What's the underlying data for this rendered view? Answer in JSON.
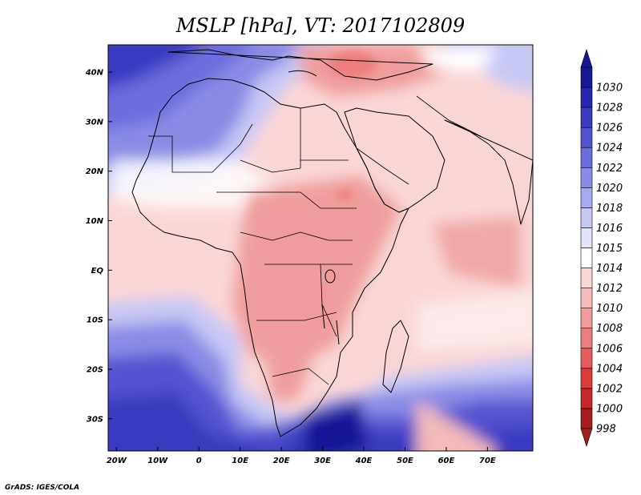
{
  "title": "MSLP [hPa], VT: 2017102809",
  "credit": "GrADS: IGES/COLA",
  "x_axis": {
    "range": [
      -22,
      81
    ],
    "ticks": [
      {
        "value": -20,
        "label": "20W"
      },
      {
        "value": -10,
        "label": "10W"
      },
      {
        "value": 0,
        "label": "0"
      },
      {
        "value": 10,
        "label": "10E"
      },
      {
        "value": 20,
        "label": "20E"
      },
      {
        "value": 30,
        "label": "30E"
      },
      {
        "value": 40,
        "label": "40E"
      },
      {
        "value": 50,
        "label": "50E"
      },
      {
        "value": 60,
        "label": "60E"
      },
      {
        "value": 70,
        "label": "70E"
      }
    ]
  },
  "y_axis": {
    "range": [
      -36.5,
      45.5
    ],
    "ticks": [
      {
        "value": 40,
        "label": "40N"
      },
      {
        "value": 30,
        "label": "30N"
      },
      {
        "value": 20,
        "label": "20N"
      },
      {
        "value": 10,
        "label": "10N"
      },
      {
        "value": 0,
        "label": "EQ"
      },
      {
        "value": -10,
        "label": "10S"
      },
      {
        "value": -20,
        "label": "20S"
      },
      {
        "value": -30,
        "label": "30S"
      }
    ]
  },
  "colorbar": [
    {
      "value": "998",
      "color": "#a51c1c"
    },
    {
      "value": "1000",
      "color": "#c42828"
    },
    {
      "value": "1002",
      "color": "#da3c3c"
    },
    {
      "value": "1004",
      "color": "#e55c5c"
    },
    {
      "value": "1006",
      "color": "#ec7e7e"
    },
    {
      "value": "1008",
      "color": "#f09c9c"
    },
    {
      "value": "1010",
      "color": "#f5baba"
    },
    {
      "value": "1012",
      "color": "#f9d6d6"
    },
    {
      "value": "1014",
      "color": "#ffffff"
    },
    {
      "value": "1015",
      "color": "#e4e4fb"
    },
    {
      "value": "1016",
      "color": "#c8c8f5"
    },
    {
      "value": "1018",
      "color": "#a9a9ef"
    },
    {
      "value": "1020",
      "color": "#8b8be6"
    },
    {
      "value": "1022",
      "color": "#6d6ddd"
    },
    {
      "value": "1024",
      "color": "#5252cf"
    },
    {
      "value": "1026",
      "color": "#3b3bc1"
    },
    {
      "value": "1028",
      "color": "#2626ae"
    },
    {
      "value": "1030",
      "color": "#181896"
    }
  ]
}
